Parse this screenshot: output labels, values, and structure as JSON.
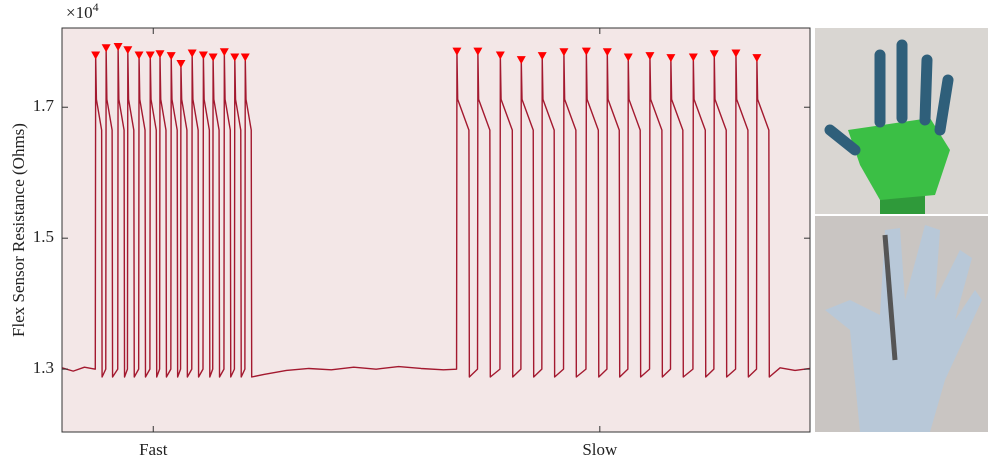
{
  "chart_data": {
    "type": "line",
    "y_label": "Flex Sensor Resistance (Ohms)",
    "y_multiplier": {
      "base": "×10",
      "exponent": "4"
    },
    "xlim": [
      0,
      1000
    ],
    "xticks": [
      {
        "value": 122,
        "label": "Fast"
      },
      {
        "value": 719,
        "label": "Slow"
      }
    ],
    "ylim": [
      1.204,
      1.821
    ],
    "yticks": [
      1.3,
      1.5,
      1.7
    ],
    "background": "#f3e7e7",
    "series": [
      {
        "color": "#a3192f",
        "mode": "line",
        "x": [
          0,
          15,
          30,
          44.5,
          45,
          46,
          53,
          53.6,
          58.5,
          59,
          60,
          67,
          67.6,
          74.5,
          75,
          76,
          83,
          83.6,
          87.5,
          88,
          89,
          96,
          96.6,
          102.5,
          103,
          104,
          111,
          111.6,
          117.5,
          118,
          119,
          126,
          126.6,
          130.5,
          131,
          132,
          139,
          139.6,
          145.5,
          146,
          147,
          154,
          154.6,
          158.5,
          159,
          160,
          167,
          167.6,
          173.5,
          174,
          175,
          182,
          182.6,
          188.5,
          189,
          190,
          197,
          197.6,
          201.5,
          202,
          203,
          210,
          210.6,
          216.5,
          217,
          218,
          225,
          225.6,
          230.5,
          231,
          232,
          239,
          239.6,
          244.5,
          245,
          246,
          253,
          253.6,
          270,
          300,
          330,
          360,
          390,
          420,
          450,
          480,
          510,
          527.5,
          528,
          529,
          544,
          544.6,
          555.5,
          556,
          557,
          572,
          572.6,
          585.5,
          586,
          587,
          602,
          602.6,
          613.5,
          614,
          615,
          630,
          630.6,
          641.5,
          642,
          643,
          658,
          658.6,
          670.5,
          671,
          672,
          687,
          687.6,
          700.5,
          701,
          702,
          717,
          717.6,
          728.5,
          729,
          730,
          745,
          745.6,
          756.5,
          757,
          758,
          773,
          773.6,
          785.5,
          786,
          787,
          802,
          802.6,
          813.5,
          814,
          815,
          830,
          830.6,
          843.5,
          844,
          845,
          860,
          860.6,
          871.5,
          872,
          873,
          888,
          888.6,
          900.5,
          901,
          902,
          917,
          917.6,
          928.5,
          929,
          930,
          945,
          945.6,
          960,
          980,
          1000
        ],
        "values": [
          1.302,
          1.297,
          1.303,
          1.3,
          1.779,
          1.712,
          1.665,
          1.288,
          1.3,
          1.79,
          1.712,
          1.665,
          1.288,
          1.3,
          1.792,
          1.712,
          1.665,
          1.288,
          1.3,
          1.787,
          1.712,
          1.665,
          1.288,
          1.3,
          1.779,
          1.712,
          1.665,
          1.288,
          1.3,
          1.779,
          1.712,
          1.665,
          1.288,
          1.3,
          1.781,
          1.712,
          1.665,
          1.288,
          1.3,
          1.778,
          1.712,
          1.665,
          1.288,
          1.3,
          1.766,
          1.712,
          1.665,
          1.288,
          1.3,
          1.782,
          1.712,
          1.665,
          1.288,
          1.3,
          1.779,
          1.712,
          1.665,
          1.288,
          1.3,
          1.776,
          1.712,
          1.665,
          1.288,
          1.3,
          1.784,
          1.712,
          1.665,
          1.288,
          1.3,
          1.776,
          1.712,
          1.665,
          1.288,
          1.3,
          1.776,
          1.712,
          1.665,
          1.288,
          1.292,
          1.298,
          1.301,
          1.299,
          1.303,
          1.3,
          1.304,
          1.301,
          1.299,
          1.3,
          1.785,
          1.712,
          1.665,
          1.288,
          1.3,
          1.785,
          1.712,
          1.665,
          1.288,
          1.3,
          1.779,
          1.712,
          1.665,
          1.288,
          1.3,
          1.772,
          1.712,
          1.665,
          1.288,
          1.3,
          1.778,
          1.712,
          1.665,
          1.288,
          1.3,
          1.784,
          1.712,
          1.665,
          1.288,
          1.3,
          1.785,
          1.712,
          1.665,
          1.288,
          1.3,
          1.784,
          1.712,
          1.665,
          1.288,
          1.3,
          1.776,
          1.712,
          1.665,
          1.288,
          1.3,
          1.778,
          1.712,
          1.665,
          1.288,
          1.3,
          1.775,
          1.712,
          1.665,
          1.288,
          1.3,
          1.776,
          1.712,
          1.665,
          1.288,
          1.3,
          1.781,
          1.712,
          1.665,
          1.288,
          1.3,
          1.782,
          1.712,
          1.665,
          1.288,
          1.3,
          1.775,
          1.712,
          1.665,
          1.288,
          1.302,
          1.298,
          1.301
        ]
      },
      {
        "color": "#ff0000",
        "mode": "marker",
        "x": [
          45,
          59,
          75,
          88,
          103,
          118,
          131,
          146,
          159,
          174,
          189,
          202,
          217,
          231,
          245,
          528,
          556,
          586,
          614,
          642,
          671,
          701,
          729,
          757,
          786,
          814,
          844,
          872,
          901,
          929
        ],
        "values": [
          1.779,
          1.79,
          1.792,
          1.787,
          1.779,
          1.779,
          1.781,
          1.778,
          1.766,
          1.782,
          1.779,
          1.776,
          1.784,
          1.776,
          1.776,
          1.785,
          1.785,
          1.779,
          1.772,
          1.778,
          1.784,
          1.785,
          1.784,
          1.776,
          1.778,
          1.775,
          1.776,
          1.781,
          1.782,
          1.775
        ]
      }
    ]
  }
}
